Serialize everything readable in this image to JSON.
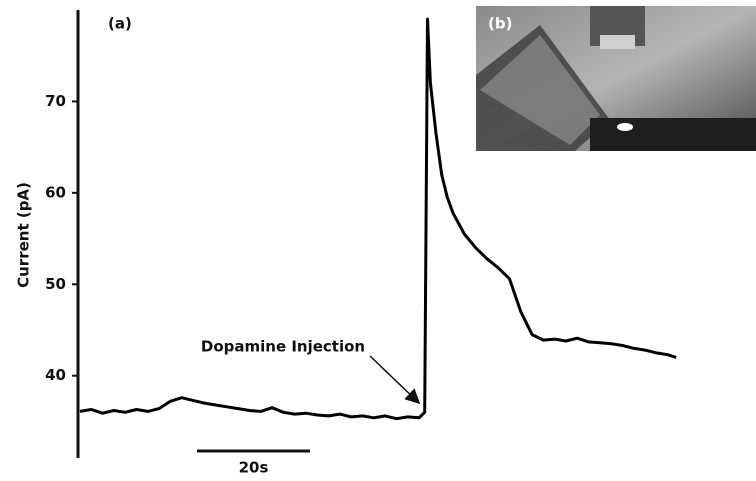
{
  "chart_data": {
    "type": "line",
    "panel_labels": [
      "(a)",
      "(b)"
    ],
    "y_label": "Current (pA)",
    "annotation": "Dopamine Injection",
    "scale_bar": {
      "length": 20,
      "label": "20s"
    },
    "ylim": [
      31,
      80
    ],
    "yticks": [
      40,
      50,
      60,
      70
    ],
    "xlim": [
      0,
      106
    ],
    "series": [
      {
        "color": "#000000",
        "x": [
          0,
          2,
          4,
          6,
          8,
          10,
          12,
          14,
          16,
          18,
          20,
          22,
          24,
          26,
          28,
          30,
          32,
          34,
          36,
          38,
          40,
          42,
          44,
          46,
          48,
          50,
          52,
          54,
          56,
          58,
          60,
          61,
          61.5,
          62,
          63,
          64,
          65,
          66,
          68,
          70,
          72,
          74,
          76,
          78,
          80,
          82,
          84,
          86,
          88,
          90,
          92,
          94,
          96,
          98,
          100,
          102,
          104,
          105.5
        ],
        "values": [
          36.1,
          36.3,
          35.9,
          36.2,
          36.0,
          36.3,
          36.1,
          36.4,
          37.2,
          37.6,
          37.3,
          37.0,
          36.8,
          36.6,
          36.4,
          36.2,
          36.1,
          36.5,
          36.0,
          35.8,
          35.9,
          35.7,
          35.6,
          35.8,
          35.5,
          35.6,
          35.4,
          35.6,
          35.3,
          35.5,
          35.4,
          36.0,
          79.0,
          72.0,
          66.5,
          62.0,
          59.5,
          57.8,
          55.5,
          54.0,
          52.8,
          51.8,
          50.6,
          47.0,
          44.5,
          43.9,
          44.0,
          43.8,
          44.1,
          43.7,
          43.6,
          43.5,
          43.3,
          43.0,
          42.8,
          42.5,
          42.3,
          42.0
        ]
      }
    ]
  }
}
